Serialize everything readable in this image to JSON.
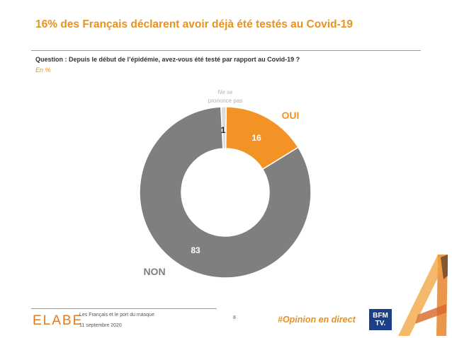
{
  "header": {
    "title": "16% des Français déclarent avoir déjà été testés au Covid-19",
    "question": "Question : Depuis le début de l’épidémie, avez-vous été testé par rapport au Covid-19 ?",
    "unit": "En  %"
  },
  "chart_data": {
    "type": "pie",
    "donut": true,
    "slices": [
      {
        "label": "Ne se prononce pas",
        "label_lines": [
          "Ne se",
          "prononce pas"
        ],
        "value": 1,
        "value_label": "1",
        "color": "#dcdcdc"
      },
      {
        "label": "OUI",
        "value": 16,
        "value_label": "16",
        "color": "#f39325"
      },
      {
        "label": "NON",
        "value": 83,
        "value_label": "83",
        "color": "#7f7f7f"
      }
    ]
  },
  "footer": {
    "logo": "ELABE",
    "study": "Les Français et le port du masque",
    "date": "11 septembre 2020",
    "page_number": "8",
    "hashtag": "#Opinion en direct",
    "partner_logo": [
      "BFM",
      "TV."
    ]
  },
  "colors": {
    "accent": "#e8921f",
    "oui": "#f39325",
    "non": "#7f7f7f",
    "nsp": "#dcdcdc"
  }
}
